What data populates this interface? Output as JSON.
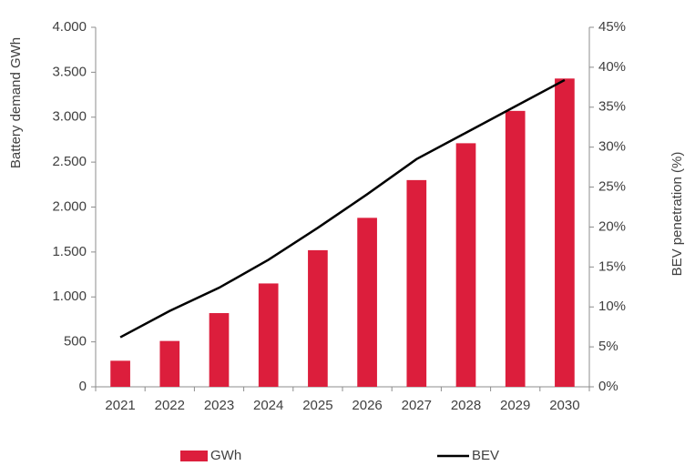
{
  "chart_data": {
    "type": "bar-line",
    "categories": [
      "2021",
      "2022",
      "2023",
      "2024",
      "2025",
      "2026",
      "2027",
      "2028",
      "2029",
      "2030"
    ],
    "series": [
      {
        "name": "GWh",
        "type": "bar",
        "axis": "y",
        "color": "#dc1e3c",
        "values": [
          290,
          510,
          820,
          1150,
          1520,
          1880,
          2300,
          2710,
          3070,
          3430
        ]
      },
      {
        "name": "BEV",
        "type": "line",
        "axis": "y2",
        "color": "#000000",
        "values": [
          6.2,
          9.5,
          12.4,
          15.9,
          19.9,
          24.1,
          28.5,
          31.8,
          35.1,
          38.4
        ]
      }
    ],
    "ylabel": "Battery demand GWh",
    "y2label": "BEV penetration (%)",
    "ylim": [
      0,
      4000
    ],
    "yticks": [
      0,
      500,
      {
        "value": 1000,
        "label": "1.000"
      },
      {
        "value": 1500,
        "label": "1.500"
      },
      {
        "value": 2000,
        "label": "2.000"
      },
      {
        "value": 2500,
        "label": "2.500"
      },
      {
        "value": 3000,
        "label": "3.000"
      },
      {
        "value": 3500,
        "label": "3.500"
      },
      {
        "value": 4000,
        "label": "4.000"
      }
    ],
    "y2lim": [
      0,
      45
    ],
    "y2ticks": [
      {
        "value": 0,
        "label": "0%"
      },
      {
        "value": 5,
        "label": "5%"
      },
      {
        "value": 10,
        "label": "10%"
      },
      {
        "value": 15,
        "label": "15%"
      },
      {
        "value": 20,
        "label": "20%"
      },
      {
        "value": 25,
        "label": "25%"
      },
      {
        "value": 30,
        "label": "30%"
      },
      {
        "value": 35,
        "label": "35%"
      },
      {
        "value": 40,
        "label": "40%"
      },
      {
        "value": 45,
        "label": "45%"
      }
    ],
    "legend": "bottom"
  }
}
